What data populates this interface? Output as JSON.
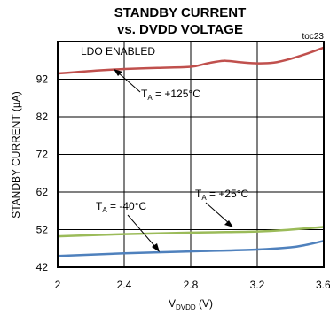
{
  "chart_data": {
    "type": "line",
    "title_line1": "STANDBY CURRENT",
    "title_line2": "vs. DVDD VOLTAGE",
    "tag": "toc23",
    "ylabel": "STANDBY CURRENT (µA)",
    "xlabel_main": "V",
    "xlabel_sub": "DVDD",
    "xlabel_unit": " (V)",
    "xlim": [
      2.0,
      3.6
    ],
    "ylim": [
      42,
      102
    ],
    "xticks": [
      "2",
      "2.4",
      "2.8",
      "3.2",
      "3.6"
    ],
    "yticks": [
      "42",
      "52",
      "62",
      "72",
      "82",
      "92"
    ],
    "grid": true,
    "series": [
      {
        "color": "#c0504d",
        "x": [
          2.0,
          2.2,
          2.4,
          2.6,
          2.8,
          2.9,
          3.0,
          3.1,
          3.2,
          3.3,
          3.4,
          3.5,
          3.6
        ],
        "y": [
          93.5,
          94.2,
          94.7,
          95.0,
          95.3,
          96.2,
          96.9,
          96.5,
          96.2,
          96.4,
          97.4,
          98.8,
          100.4
        ]
      },
      {
        "color": "#9bbb59",
        "x": [
          2.0,
          2.4,
          2.8,
          3.2,
          3.4,
          3.6
        ],
        "y": [
          50.2,
          50.8,
          51.2,
          51.5,
          52.0,
          52.7
        ]
      },
      {
        "color": "#4f81bd",
        "x": [
          2.0,
          2.4,
          2.8,
          3.2,
          3.4,
          3.5,
          3.6
        ],
        "y": [
          45.0,
          45.7,
          46.2,
          46.7,
          47.3,
          48.0,
          49.0
        ]
      }
    ],
    "annotations": {
      "ldo": "LDO ENABLED",
      "t125_pre": "T",
      "t125_sub": "A",
      "t125_post": " = +125°C",
      "t25_pre": "T",
      "t25_sub": "A",
      "t25_post": " = +25°C",
      "tm40_pre": "T",
      "tm40_sub": "A",
      "tm40_post": " = -40°C"
    }
  }
}
